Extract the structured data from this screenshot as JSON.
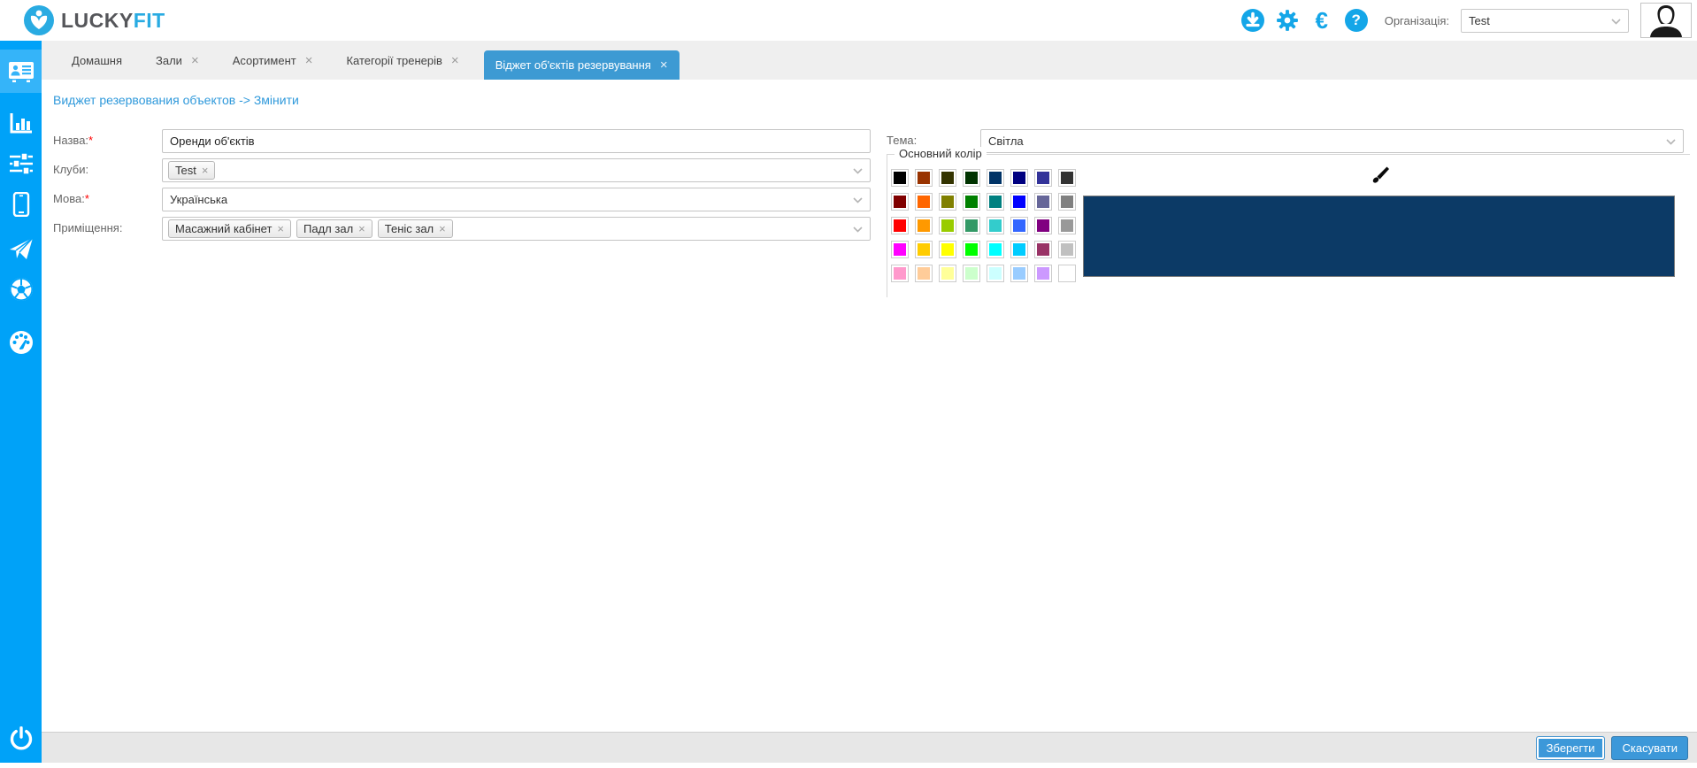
{
  "header": {
    "brand_lucky": "LUCKY",
    "brand_fit": "FIT",
    "euro_glyph": "€",
    "help_glyph": "?",
    "org_label": "Організація:",
    "org_value": "Test"
  },
  "tabs": [
    {
      "label": "Домашня",
      "closable": false,
      "active": false
    },
    {
      "label": "Зали",
      "closable": true,
      "active": false
    },
    {
      "label": "Асортимент",
      "closable": true,
      "active": false
    },
    {
      "label": "Категорії тренерів",
      "closable": true,
      "active": false
    },
    {
      "label": "Віджет об'єктів резервування",
      "closable": true,
      "active": true
    }
  ],
  "page": {
    "title": "Виджет резервования объектов -> Змінити"
  },
  "form": {
    "name": {
      "label": "Назва:",
      "required": true,
      "value": "Оренди об'єктів"
    },
    "clubs": {
      "label": "Клуби:",
      "tags": [
        "Test"
      ]
    },
    "language": {
      "label": "Мова:",
      "required": true,
      "value": "Українська"
    },
    "rooms": {
      "label": "Приміщення:",
      "tags": [
        "Масажний кабінет",
        "Падл зал",
        "Теніс зал"
      ]
    },
    "theme": {
      "label": "Тема:",
      "value": "Світла"
    },
    "main_color": {
      "legend": "Основний колір",
      "selected_color": "#0c3a66",
      "palette": [
        [
          "#000000",
          "#993300",
          "#333300",
          "#003300",
          "#003366",
          "#000080",
          "#333399",
          "#333333"
        ],
        [
          "#800000",
          "#FF6600",
          "#808000",
          "#008000",
          "#008080",
          "#0000FF",
          "#666699",
          "#808080"
        ],
        [
          "#FF0000",
          "#FF9900",
          "#99CC00",
          "#339966",
          "#33CCCC",
          "#3366FF",
          "#800080",
          "#999999"
        ],
        [
          "#FF00FF",
          "#FFCC00",
          "#FFFF00",
          "#00FF00",
          "#00FFFF",
          "#00CCFF",
          "#993366",
          "#C0C0C0"
        ],
        [
          "#FF99CC",
          "#FFCC99",
          "#FFFF99",
          "#CCFFCC",
          "#CCFFFF",
          "#99CCFF",
          "#CC99FF",
          "#FFFFFF"
        ]
      ]
    }
  },
  "footer": {
    "save_label": "Зберегти",
    "cancel_label": "Скасувати"
  },
  "ui": {
    "close_glyph": "×",
    "required_glyph": "*"
  },
  "colors": {
    "sidebar": "#00a2f8",
    "sidebar_selected": "#35b4f9",
    "header_icon": "#14a6e8",
    "active_tab": "#3d9ad3",
    "title": "#2f99db"
  }
}
